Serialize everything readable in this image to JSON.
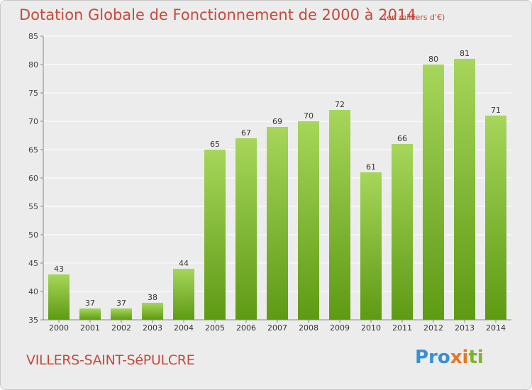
{
  "header": {
    "title": "Dotation Globale de Fonctionnement de 2000 à 2014",
    "subtitle": "(en milliers d'€)"
  },
  "footer": {
    "commune": "VILLERS-SAINT-SéPULCRE",
    "logo_text": "Proxiti"
  },
  "colors": {
    "bar_top": "#a6d65a",
    "bar_bottom": "#5e9a14",
    "title": "#c64a3a",
    "grid": "#ffffff",
    "background": "#ececec"
  },
  "chart_data": {
    "type": "bar",
    "title": "Dotation Globale de Fonctionnement de 2000 à 2014",
    "xlabel": "",
    "ylabel": "",
    "categories": [
      "2000",
      "2001",
      "2002",
      "2003",
      "2004",
      "2005",
      "2006",
      "2007",
      "2008",
      "2009",
      "2010",
      "2011",
      "2012",
      "2013",
      "2014"
    ],
    "values": [
      43,
      37,
      37,
      38,
      44,
      65,
      67,
      69,
      70,
      72,
      61,
      66,
      80,
      81,
      71
    ],
    "ylim": [
      35,
      85
    ],
    "yticks": [
      35,
      40,
      45,
      50,
      55,
      60,
      65,
      70,
      75,
      80,
      85
    ],
    "grid": true,
    "data_labels": true
  }
}
